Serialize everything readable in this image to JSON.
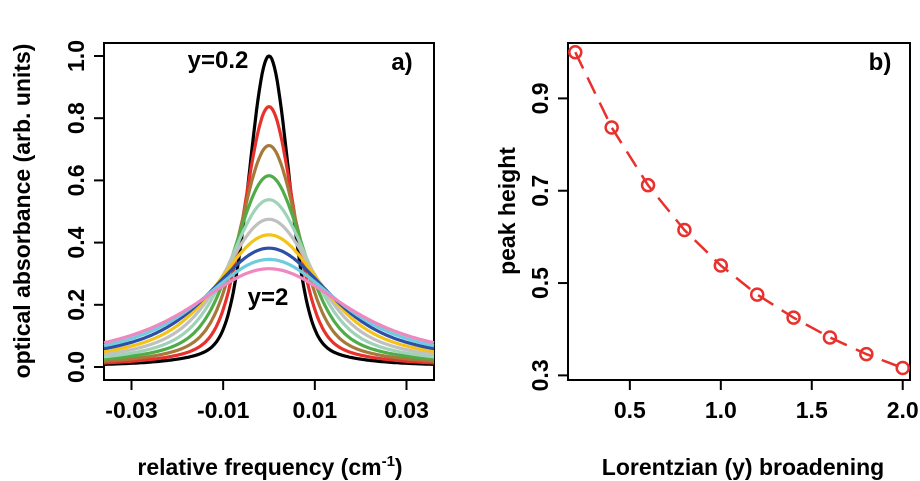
{
  "chart_data": [
    {
      "type": "line",
      "panel_label": "a)",
      "xlabel": "relative frequency (cm",
      "xlabel_sup": "-1",
      "xlabel_tail": ")",
      "ylabel": "optical absorbance (arb. units)",
      "xlim": [
        -0.036,
        0.036
      ],
      "ylim": [
        0.0,
        1.0
      ],
      "x_ticks": [
        -0.03,
        -0.01,
        0.01,
        0.03
      ],
      "x_tick_labels": [
        "-0.03",
        "-0.01",
        "0.01",
        "0.03"
      ],
      "y_ticks": [
        0.0,
        0.2,
        0.4,
        0.6,
        0.8,
        1.0
      ],
      "y_tick_labels": [
        "0.0",
        "0.2",
        "0.4",
        "0.6",
        "0.8",
        "1.0"
      ],
      "annotations": [
        {
          "text": "y=0.2",
          "color": "#000000"
        },
        {
          "text": "y=2",
          "color": "#ee88c0"
        }
      ],
      "series": [
        {
          "y": 0.2,
          "color": "#000000"
        },
        {
          "y": 0.4,
          "color": "#e8312c"
        },
        {
          "y": 0.6,
          "color": "#a6793a"
        },
        {
          "y": 0.8,
          "color": "#4fac49"
        },
        {
          "y": 1.0,
          "color": "#9fd3b8"
        },
        {
          "y": 1.2,
          "color": "#c0c0c0"
        },
        {
          "y": 1.4,
          "color": "#f2c419"
        },
        {
          "y": 1.6,
          "color": "#2e4fa5"
        },
        {
          "y": 1.8,
          "color": "#6fcce0"
        },
        {
          "y": 2.0,
          "color": "#ee88c0"
        }
      ],
      "grid": false
    },
    {
      "type": "line",
      "panel_label": "b)",
      "xlabel": "Lorentzian (y) broadening",
      "ylabel": "peak height",
      "xlim": [
        0.16,
        2.04
      ],
      "ylim": [
        0.29,
        1.02
      ],
      "x_ticks": [
        0.5,
        1.0,
        1.5,
        2.0
      ],
      "x_tick_labels": [
        "0.5",
        "1.0",
        "1.5",
        "2.0"
      ],
      "y_ticks": [
        0.3,
        0.5,
        0.7,
        0.9
      ],
      "y_tick_labels": [
        "0.3",
        "0.5",
        "0.7",
        "0.9"
      ],
      "series": [
        {
          "color": "#e8312c",
          "x": [
            0.2,
            0.4,
            0.6,
            0.8,
            1.0,
            1.2,
            1.4,
            1.6,
            1.8,
            2.0
          ],
          "values": [
            1.0,
            0.837,
            0.712,
            0.615,
            0.538,
            0.475,
            0.425,
            0.382,
            0.346,
            0.316
          ]
        }
      ],
      "grid": false
    }
  ]
}
